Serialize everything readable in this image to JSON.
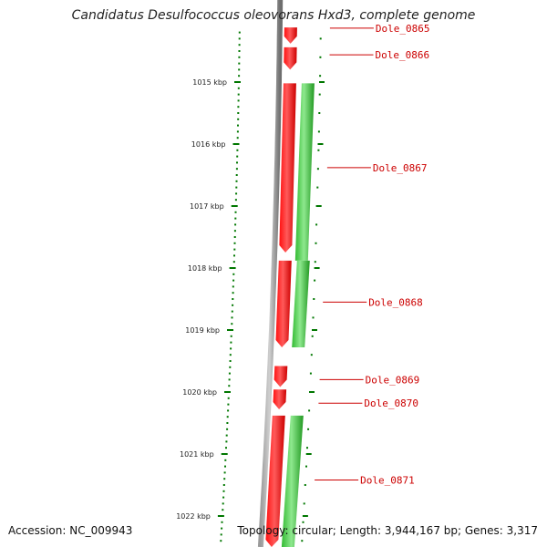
{
  "title": "Candidatus Desulfococcus oleovorans Hxd3, complete genome",
  "footer": {
    "accession": "Accession: NC_009943",
    "topology": "Topology: circular; Length: 3,944,167 bp; Genes: 3,317"
  },
  "colors": {
    "forward_gene": "#ff0000",
    "reverse_gene": "#33cc33",
    "backbone": "#888888",
    "tick": "#007700",
    "label": "#cc0000"
  },
  "scale": {
    "unit": "kbp",
    "start_kbp": 1014.0,
    "end_kbp": 1022.5,
    "major_ticks_kbp": [
      1015,
      1016,
      1017,
      1018,
      1019,
      1020,
      1021,
      1022
    ],
    "major_tick_labels": [
      "1015 kbp",
      "1016 kbp",
      "1017 kbp",
      "1018 kbp",
      "1019 kbp",
      "1020 kbp",
      "1021 kbp",
      "1022 kbp"
    ]
  },
  "genes": [
    {
      "id": "Dole_0865",
      "strand": "+",
      "start_kbp": 1014.12,
      "end_kbp": 1014.38
    },
    {
      "id": "Dole_0866",
      "strand": "+",
      "start_kbp": 1014.44,
      "end_kbp": 1014.8
    },
    {
      "id": "Dole_0867",
      "strand": "-",
      "start_kbp": 1015.02,
      "end_kbp": 1017.88
    },
    {
      "id": "Dole_0867_red",
      "strand": "+",
      "start_kbp": 1015.02,
      "end_kbp": 1017.75
    },
    {
      "id": "Dole_0868",
      "strand": "-",
      "start_kbp": 1017.88,
      "end_kbp": 1019.28
    },
    {
      "id": "Dole_0868_red",
      "strand": "+",
      "start_kbp": 1017.88,
      "end_kbp": 1019.28
    },
    {
      "id": "Dole_0869",
      "strand": "+",
      "start_kbp": 1019.58,
      "end_kbp": 1019.92
    },
    {
      "id": "Dole_0870",
      "strand": "+",
      "start_kbp": 1019.96,
      "end_kbp": 1020.28
    },
    {
      "id": "Dole_0871",
      "strand": "-",
      "start_kbp": 1020.38,
      "end_kbp": 1022.5
    },
    {
      "id": "Dole_0871_red",
      "strand": "+",
      "start_kbp": 1020.38,
      "end_kbp": 1022.5
    }
  ],
  "labels": [
    {
      "text": "Dole_0865",
      "at_kbp": 1014.13
    },
    {
      "text": "Dole_0866",
      "at_kbp": 1014.56
    },
    {
      "text": "Dole_0867",
      "at_kbp": 1016.38
    },
    {
      "text": "Dole_0868",
      "at_kbp": 1018.55
    },
    {
      "text": "Dole_0869",
      "at_kbp": 1019.8
    },
    {
      "text": "Dole_0870",
      "at_kbp": 1020.18
    },
    {
      "text": "Dole_0871",
      "at_kbp": 1021.42
    }
  ]
}
